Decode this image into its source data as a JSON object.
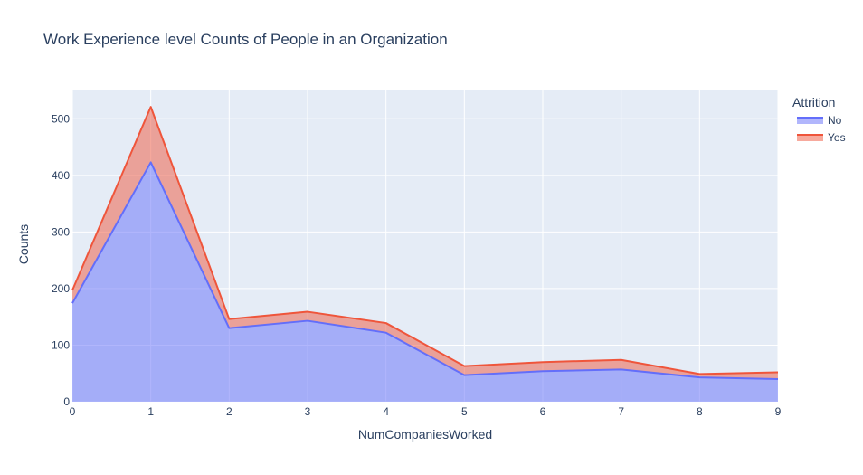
{
  "chart_data": {
    "type": "area",
    "title": "Work Experience level Counts of People in an Organization",
    "xlabel": "NumCompaniesWorked",
    "ylabel": "Counts",
    "x": [
      0,
      1,
      2,
      3,
      4,
      5,
      6,
      7,
      8,
      9
    ],
    "xlim": [
      0,
      9
    ],
    "ylim": [
      0,
      550
    ],
    "yticks": [
      0,
      100,
      200,
      300,
      400,
      500
    ],
    "stacked": true,
    "grid": true,
    "legend_title": "Attrition",
    "legend_position": "top-right",
    "series": [
      {
        "name": "No",
        "values": [
          174,
          423,
          130,
          143,
          122,
          47,
          54,
          57,
          43,
          40
        ],
        "color": "#636efa"
      },
      {
        "name": "Yes",
        "values": [
          23,
          98,
          16,
          16,
          17,
          16,
          16,
          17,
          6,
          12
        ],
        "color": "#ef553b"
      }
    ]
  }
}
